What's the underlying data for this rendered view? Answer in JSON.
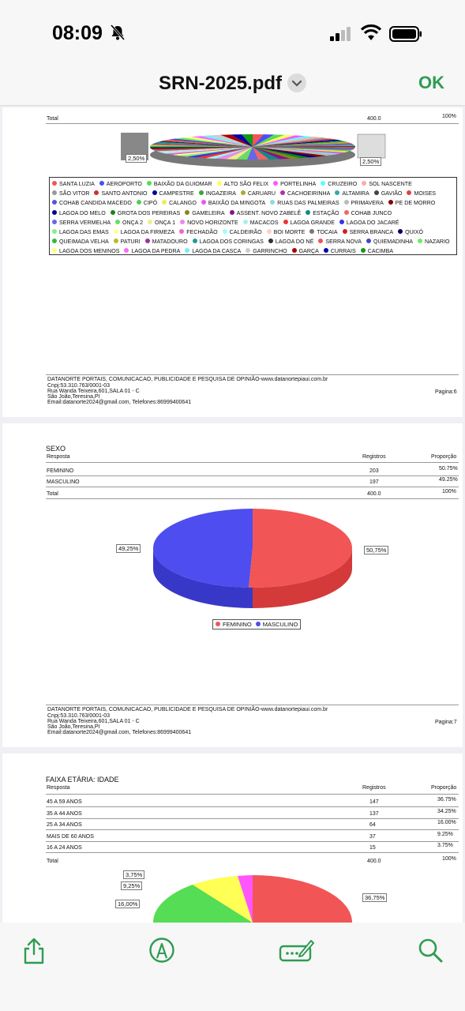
{
  "status_bar": {
    "time": "08:09"
  },
  "nav": {
    "title": "SRN-2025.pdf",
    "done": "OK"
  },
  "colors": {
    "accent": "#2e9c52",
    "feminino": "#f25555",
    "masculino": "#4d4df0"
  },
  "page6": {
    "total_label": "Total",
    "total_value": "400.0",
    "total_pct": "100%",
    "pie_label_left": "2,50%",
    "pie_label_right": "2,50%",
    "legend": [
      {
        "label": "SANTA LUZIA",
        "color": "#f25555"
      },
      {
        "label": "AEROPORTO",
        "color": "#4d4df0"
      },
      {
        "label": "BAIXÃO DA GUIOMAR",
        "color": "#55dd55"
      },
      {
        "label": "ALTO SÃO FELIX",
        "color": "#ffff55"
      },
      {
        "label": "PORTELINHA",
        "color": "#ff55ff"
      },
      {
        "label": "CRUZEIRO",
        "color": "#55ffff"
      },
      {
        "label": "SOL NASCENTE",
        "color": "#ffaaaa"
      },
      {
        "label": "SÃO VITOR",
        "color": "#999999"
      },
      {
        "label": "SANTO ANTONIO",
        "color": "#cc3333"
      },
      {
        "label": "CAMPESTRE",
        "color": "#000099"
      },
      {
        "label": "INGAZEIRA",
        "color": "#33aa33"
      },
      {
        "label": "CARUARU",
        "color": "#aaaa33"
      },
      {
        "label": "CACHOEIRINHA",
        "color": "#aa33aa"
      },
      {
        "label": "ALTAMIRA",
        "color": "#33aaaa"
      },
      {
        "label": "GAVIÃO",
        "color": "#444444"
      },
      {
        "label": "MOISES",
        "color": "#dd4444"
      },
      {
        "label": "COHAB CANDIDA MACEDO",
        "color": "#5555dd"
      },
      {
        "label": "CIPÓ",
        "color": "#55cc55"
      },
      {
        "label": "CALANGO",
        "color": "#eeee55"
      },
      {
        "label": "BAIXÃO DA MINGOTA",
        "color": "#ee55ee"
      },
      {
        "label": "RUAS DAS PALMEIRAS",
        "color": "#88dddd"
      },
      {
        "label": "PRIMAVERA",
        "color": "#bbbbbb"
      },
      {
        "label": "PE DE MORRO",
        "color": "#880000"
      },
      {
        "label": "LAGOA DO MELO",
        "color": "#000088"
      },
      {
        "label": "GROTA DOS PEREIRAS",
        "color": "#118811"
      },
      {
        "label": "GAMELEIRA",
        "color": "#888811"
      },
      {
        "label": "ASSENT. NOVO ZABELÊ",
        "color": "#881188"
      },
      {
        "label": "ESTAÇÃO",
        "color": "#118888"
      },
      {
        "label": "COHAB JUNCO",
        "color": "#ee6666"
      },
      {
        "label": "SERRA VERMELHA",
        "color": "#6666ee"
      },
      {
        "label": "ONÇA 2",
        "color": "#66dd66"
      },
      {
        "label": "ONÇA 1",
        "color": "#eeee88"
      },
      {
        "label": "NOVO HORIZONTE",
        "color": "#ee88ee"
      },
      {
        "label": "MACACOS",
        "color": "#aaeeee"
      },
      {
        "label": "LAGOA GRANDE",
        "color": "#ee3333"
      },
      {
        "label": "LAGOA DO JACARÉ",
        "color": "#3333ee"
      },
      {
        "label": "LAGOA DAS EMAS",
        "color": "#88ee88"
      },
      {
        "label": "LAGOA DA FIRMEZA",
        "color": "#ffff99"
      },
      {
        "label": "FECHADÃO",
        "color": "#ee66cc"
      },
      {
        "label": "CALDEIRÃO",
        "color": "#99ffff"
      },
      {
        "label": "BOI MORTE",
        "color": "#ffcccc"
      },
      {
        "label": "TOCAIA",
        "color": "#777777"
      },
      {
        "label": "SERRA BRANCA",
        "color": "#cc2222"
      },
      {
        "label": "QUIXÓ",
        "color": "#000066"
      },
      {
        "label": "QUEIMADA VELHA",
        "color": "#33bb33"
      },
      {
        "label": "PATURI",
        "color": "#bbbb22"
      },
      {
        "label": "MATADOURO",
        "color": "#993399"
      },
      {
        "label": "LAGOA DOS CORINGAS",
        "color": "#229999"
      },
      {
        "label": "LAGOA DO NÉ",
        "color": "#333333"
      },
      {
        "label": "SERRA NOVA",
        "color": "#ee5555"
      },
      {
        "label": "QUIEMADINHA",
        "color": "#4444cc"
      },
      {
        "label": "NAZARIO",
        "color": "#66ee66"
      },
      {
        "label": "LAGOA DOS MENINOS",
        "color": "#ffff77"
      },
      {
        "label": "LAGOA DA PEDRA",
        "color": "#ff66ff"
      },
      {
        "label": "LAGOA DA CASCA",
        "color": "#77eeee"
      },
      {
        "label": "GARRINCHO",
        "color": "#cccccc"
      },
      {
        "label": "GARÇA",
        "color": "#aa0000"
      },
      {
        "label": "CURRAIS",
        "color": "#0000aa"
      },
      {
        "label": "CACIMBA",
        "color": "#119911"
      }
    ],
    "footer": {
      "line1": "DATANORTE PORTAIS, COMUNICACAO, PUBLICIDADE E PESQUISA DE OPINIÃO-www.datanortepiaui.com.br",
      "line2": "Cnpj:53.310.763/0001-03",
      "line3": "Rua Wanda Teixeira,601,SALA 01 - C",
      "line4": "São João,Teresina,PI",
      "line5": "Email:datanorte2024@gmail.com, Telefones:86999400641",
      "page": "Pagina:6"
    }
  },
  "page7": {
    "section_title": "SEXO",
    "col_resposta": "Resposta",
    "col_registros": "Registros",
    "col_proporcao": "Proporção",
    "rows": [
      {
        "resposta": "FEMININO",
        "registros": "203",
        "proporcao": "50.75%"
      },
      {
        "resposta": "MASCULINO",
        "registros": "197",
        "proporcao": "49.25%"
      }
    ],
    "total_label": "Total",
    "total_value": "400.0",
    "total_pct": "100%",
    "pie_label_left": "49,25%",
    "pie_label_right": "50,75%",
    "legend": [
      {
        "label": "FEMININO",
        "color": "#f25555"
      },
      {
        "label": "MASCULINO",
        "color": "#4d4df0"
      }
    ],
    "footer": {
      "line1": "DATANORTE PORTAIS, COMUNICACAO, PUBLICIDADE E PESQUISA DE OPINIÃO-www.datanortepiaui.com.br",
      "line2": "Cnpj:53.310.763/0001-03",
      "line3": "Rua Wanda Teixeira,601,SALA 01 - C",
      "line4": "São João,Teresina,PI",
      "line5": "Email:datanorte2024@gmail.com, Telefones:86999400641",
      "page": "Pagina:7"
    }
  },
  "page8": {
    "section_title": "FAIXA ETÁRIA: IDADE",
    "col_resposta": "Resposta",
    "col_registros": "Registros",
    "col_proporcao": "Proporção",
    "rows": [
      {
        "resposta": "45 A 59 ANOS",
        "registros": "147",
        "proporcao": "36.75%"
      },
      {
        "resposta": "35 A 44 ANOS",
        "registros": "137",
        "proporcao": "34.25%"
      },
      {
        "resposta": "25 A 34 ANOS",
        "registros": "64",
        "proporcao": "16.00%"
      },
      {
        "resposta": "MAIS DE 60 ANOS",
        "registros": "37",
        "proporcao": "9.25%"
      },
      {
        "resposta": "16 A 24 ANOS",
        "registros": "15",
        "proporcao": "3.75%"
      }
    ],
    "total_label": "Total",
    "total_value": "400.0",
    "total_pct": "100%",
    "pie_labels": [
      "3,75%",
      "9,25%",
      "16,00%",
      "36,75%"
    ]
  }
}
